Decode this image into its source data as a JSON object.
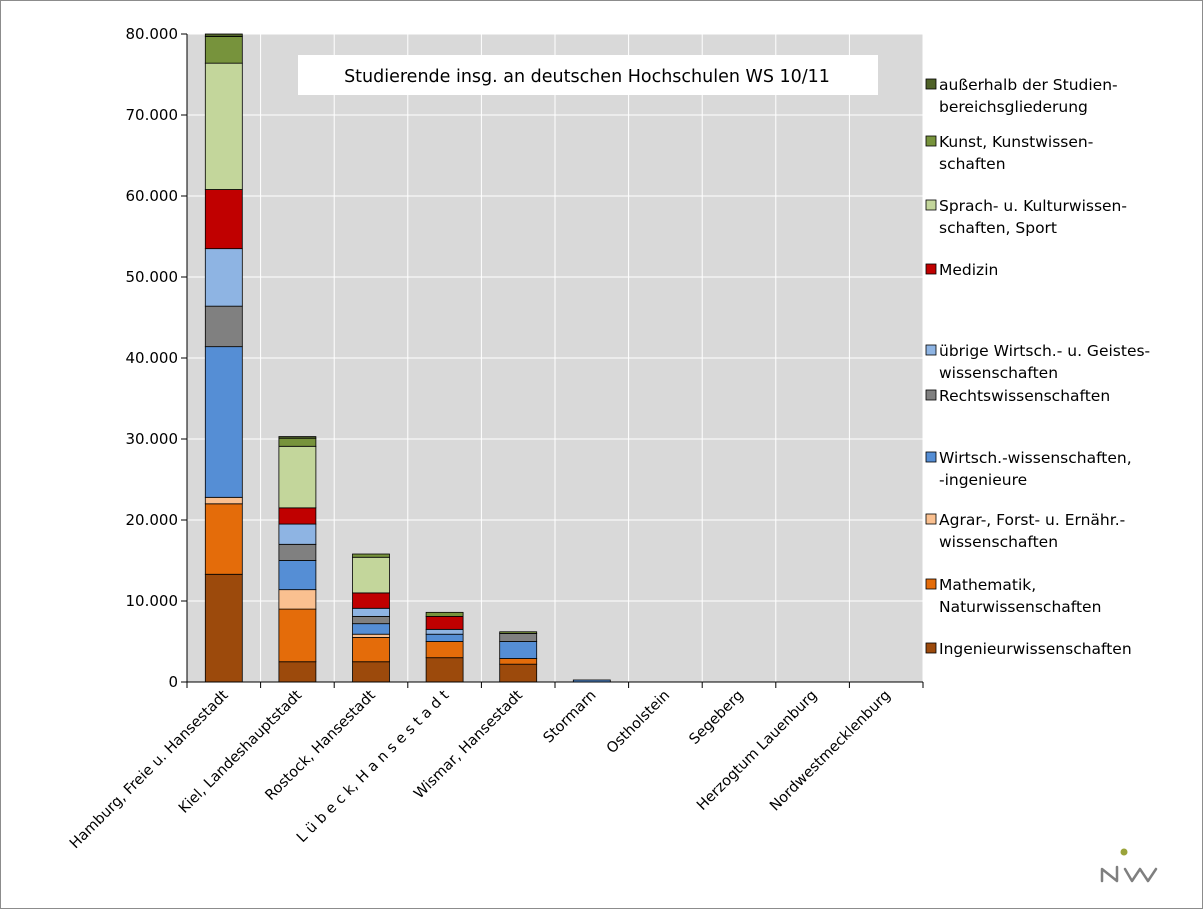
{
  "chart_data": {
    "type": "bar",
    "stacked": true,
    "title": "Studierende insg. an deutschen Hochschulen WS 10/11",
    "xlabel": "",
    "ylabel": "",
    "ylim": [
      0,
      80000
    ],
    "yticks": [
      0,
      10000,
      20000,
      30000,
      40000,
      50000,
      60000,
      70000,
      80000
    ],
    "ytick_labels": [
      "0",
      "10.000",
      "20.000",
      "30.000",
      "40.000",
      "50.000",
      "60.000",
      "70.000",
      "80.000"
    ],
    "grid": true,
    "legend_position": "right",
    "categories": [
      "Hamburg, Freie u. Hansestadt",
      "Kiel, Landeshauptstadt",
      "Rostock, Hansestadt",
      "L ü b e c k, H a n s e s t a d t",
      "Wismar, Hansestadt",
      "Stormarn",
      "Ostholstein",
      "Segeberg",
      "Herzogtum Lauenburg",
      "Nordwestmecklenburg"
    ],
    "series": [
      {
        "name": "Ingenieurwissenschaften",
        "color": "#9c4a0c",
        "values": [
          13300,
          2500,
          2500,
          3000,
          2200,
          0,
          0,
          0,
          0,
          0
        ]
      },
      {
        "name": "Mathematik, Naturwissenschaften",
        "color": "#e46c0a",
        "values": [
          8700,
          6500,
          3000,
          2000,
          700,
          0,
          0,
          0,
          0,
          0
        ]
      },
      {
        "name": "Agrar-, Forst- u. Ernähr.-wissenschaften",
        "color": "#fac090",
        "values": [
          800,
          2400,
          400,
          0,
          0,
          0,
          0,
          0,
          0,
          0
        ]
      },
      {
        "name": "Wirtsch.-wissenschaften, -ingenieure",
        "color": "#558ed5",
        "values": [
          18600,
          3600,
          1300,
          900,
          2100,
          250,
          0,
          0,
          0,
          0
        ]
      },
      {
        "name": "Rechtswissenschaften",
        "color": "#808080",
        "values": [
          5000,
          2000,
          900,
          0,
          1000,
          0,
          0,
          0,
          0,
          0
        ]
      },
      {
        "name": "übrige Wirtsch.- u. Geisteswissenschaften",
        "color": "#8eb4e3",
        "values": [
          7100,
          2500,
          1000,
          600,
          0,
          0,
          0,
          0,
          0,
          0
        ]
      },
      {
        "name": "Medizin",
        "color": "#c00000",
        "values": [
          7300,
          2000,
          1900,
          1600,
          0,
          0,
          0,
          0,
          0,
          0
        ]
      },
      {
        "name": "Sprach- u. Kulturwissenschaften, Sport",
        "color": "#c3d69b",
        "values": [
          15600,
          7600,
          4400,
          0,
          0,
          0,
          0,
          0,
          0,
          0
        ]
      },
      {
        "name": "Kunst, Kunstwissenschaften",
        "color": "#77933c",
        "values": [
          3300,
          1000,
          400,
          500,
          200,
          0,
          0,
          0,
          0,
          0
        ]
      },
      {
        "name": "außerhalb der Studienbereichsgliederung",
        "color": "#4f6228",
        "values": [
          300,
          200,
          0,
          0,
          0,
          0,
          0,
          0,
          0,
          0
        ]
      }
    ],
    "legend_order": [
      9,
      8,
      7,
      6,
      5,
      4,
      3,
      2,
      1,
      0
    ],
    "legend_labels": [
      [
        "außerhalb der Studien-",
        "bereichsgliederung"
      ],
      [
        "Kunst, Kunstwissen-",
        "schaften"
      ],
      [
        "Sprach- u. Kulturwissen-",
        "schaften, Sport"
      ],
      [
        "Medizin"
      ],
      [
        "übrige Wirtsch.- u. Geistes-",
        "wissenschaften"
      ],
      [
        "Rechtswissenschaften"
      ],
      [
        "Wirtsch.-wissenschaften,",
        " -ingenieure"
      ],
      [
        "Agrar-, Forst- u. Ernähr.-",
        "wissenschaften"
      ],
      [
        "Mathematik,",
        "Naturwissenschaften"
      ],
      [
        "Ingenieurwissenschaften"
      ]
    ]
  },
  "logo": {
    "text": "niw",
    "icon": "niw-logo-icon",
    "dot_color": "#9aa33a",
    "line_color": "#7f7f7f"
  }
}
